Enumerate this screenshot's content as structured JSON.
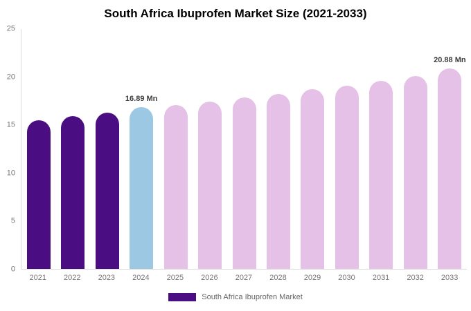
{
  "chart_data": {
    "type": "bar",
    "title": "South Africa Ibuprofen Market Size (2021-2033)",
    "categories": [
      "2021",
      "2022",
      "2023",
      "2024",
      "2025",
      "2026",
      "2027",
      "2028",
      "2029",
      "2030",
      "2031",
      "2032",
      "2033"
    ],
    "values": [
      15.5,
      15.9,
      16.3,
      16.89,
      17.1,
      17.45,
      17.85,
      18.25,
      18.7,
      19.1,
      19.6,
      20.1,
      20.88
    ],
    "unit": "Mn",
    "ylim": [
      0,
      25
    ],
    "yticks": [
      0,
      5,
      10,
      15,
      20,
      25
    ],
    "grid": false,
    "colors": {
      "historical": "#4a0e82",
      "highlight": "#9cc8e4",
      "forecast": "#e5c1e7"
    },
    "point_colors": [
      "historical",
      "historical",
      "historical",
      "highlight",
      "forecast",
      "forecast",
      "forecast",
      "forecast",
      "forecast",
      "forecast",
      "forecast",
      "forecast",
      "forecast"
    ],
    "annotations": [
      {
        "index": 3,
        "text": "16.89 Mn"
      },
      {
        "index": 12,
        "text": "20.88 Mn"
      }
    ],
    "legend": {
      "position": "bottom",
      "label": "South Africa Ibuprofen Market",
      "swatch_color": "#4a0e82"
    }
  }
}
